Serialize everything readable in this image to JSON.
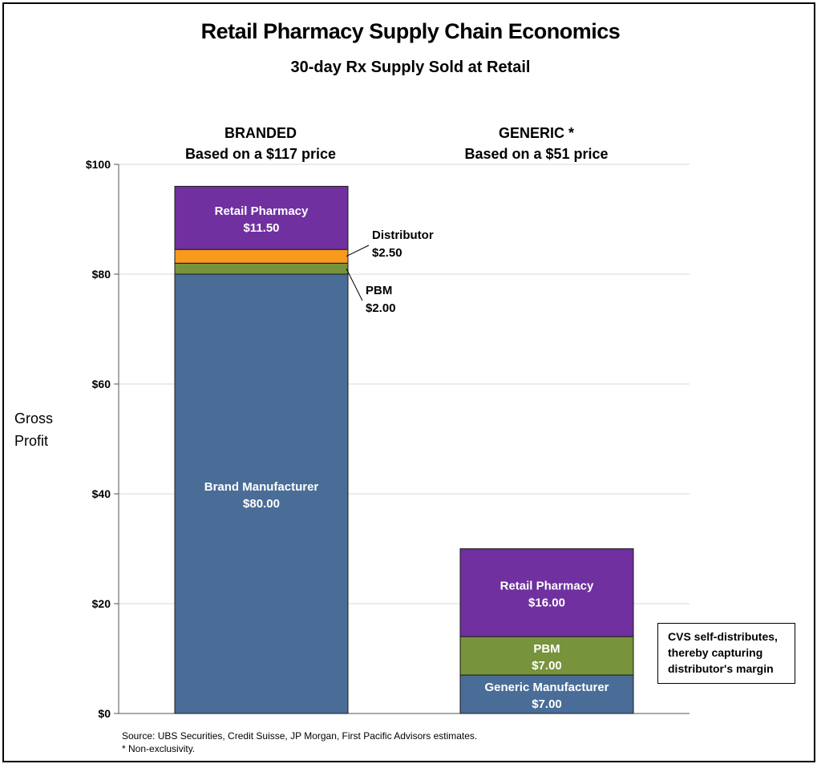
{
  "chart_data": {
    "type": "bar",
    "stacked": true,
    "title": "Retail Pharmacy Supply Chain Economics",
    "subtitle": "30-day Rx Supply Sold at Retail",
    "ylabel": "Gross Profit",
    "ylim": [
      0,
      100
    ],
    "yticks": [
      "$0",
      "$20",
      "$40",
      "$60",
      "$80",
      "$100"
    ],
    "ytick_values": [
      0,
      20,
      40,
      60,
      80,
      100
    ],
    "grid": true,
    "categories": [
      {
        "heading": "BRANDED",
        "subheading": "Based on a $117 price"
      },
      {
        "heading": "GENERIC *",
        "subheading": "Based on a $51 price"
      }
    ],
    "bars": [
      {
        "segments": [
          {
            "name": "Brand Manufacturer",
            "value": 80.0,
            "label": "$80.00",
            "color": "#4A6D98",
            "placement": "inside"
          },
          {
            "name": "PBM",
            "value": 2.0,
            "label": "$2.00",
            "color": "#77933C",
            "placement": "callout"
          },
          {
            "name": "Distributor",
            "value": 2.5,
            "label": "$2.50",
            "color": "#F79A1E",
            "placement": "callout"
          },
          {
            "name": "Retail Pharmacy",
            "value": 11.5,
            "label": "$11.50",
            "color": "#7030A0",
            "placement": "inside"
          }
        ]
      },
      {
        "segments": [
          {
            "name": "Generic Manufacturer",
            "value": 7.0,
            "label": "$7.00",
            "color": "#4A6D98",
            "placement": "inside"
          },
          {
            "name": "PBM",
            "value": 7.0,
            "label": "$7.00",
            "color": "#77933C",
            "placement": "inside"
          },
          {
            "name": "Retail Pharmacy",
            "value": 16.0,
            "label": "$16.00",
            "color": "#7030A0",
            "placement": "inside"
          }
        ]
      }
    ],
    "annotation": [
      "CVS self-distributes,",
      "thereby capturing",
      "distributor's margin"
    ]
  },
  "source": "Source: UBS Securities, Credit Suisse, JP Morgan, First Pacific Advisors estimates.",
  "footnote": "* Non-exclusivity."
}
